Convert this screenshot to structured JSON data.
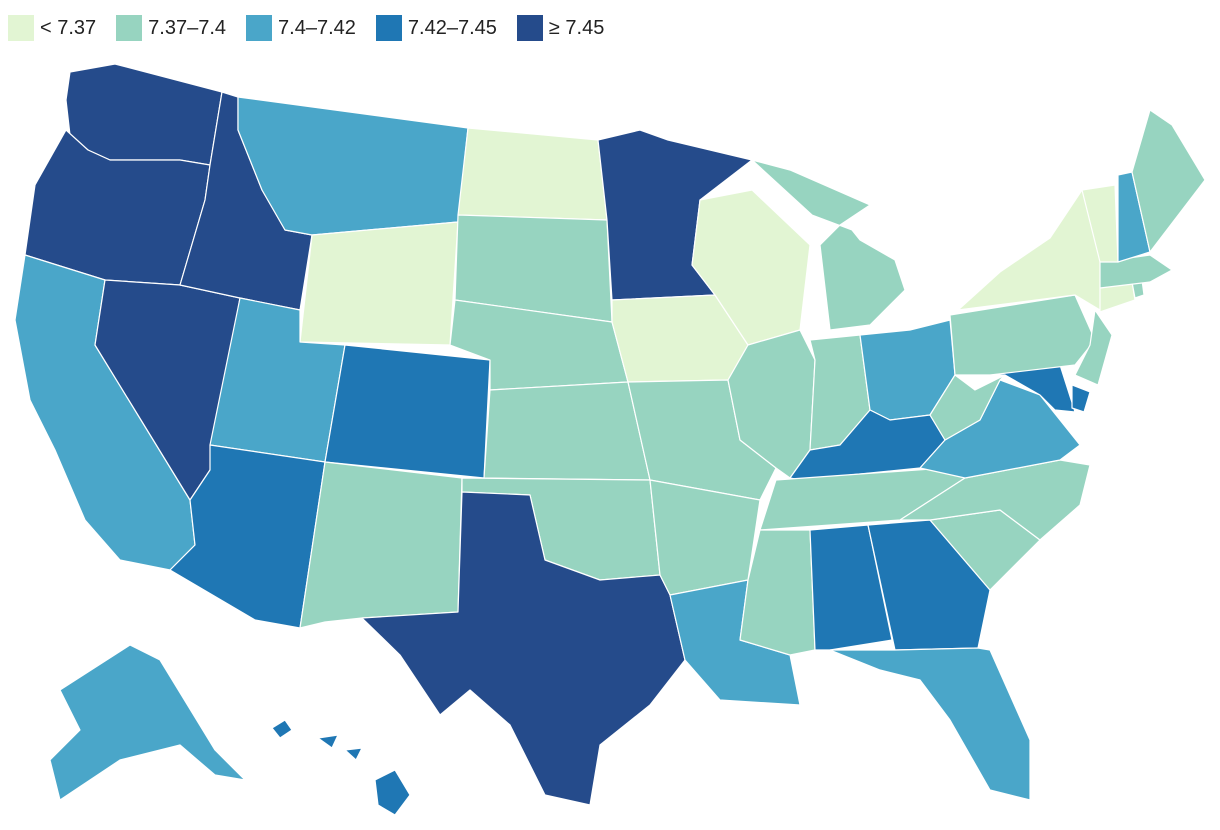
{
  "legend": [
    {
      "label": "< 7.37",
      "color": "#e2f5d3"
    },
    {
      "label": "7.37–7.4",
      "color": "#97d4c0"
    },
    {
      "label": "7.4–7.42",
      "color": "#4aa6c9"
    },
    {
      "label": "7.42–7.45",
      "color": "#1f77b4"
    },
    {
      "label": "≥ 7.45",
      "color": "#254b8b"
    }
  ],
  "states": {
    "WA": 4,
    "OR": 4,
    "CA": 2,
    "NV": 4,
    "ID": 4,
    "MT": 2,
    "WY": 0,
    "UT": 2,
    "AZ": 3,
    "CO": 3,
    "NM": 1,
    "ND": 0,
    "SD": 1,
    "NE": 1,
    "KS": 1,
    "OK": 1,
    "TX": 4,
    "MN": 4,
    "IA": 0,
    "MO": 1,
    "AR": 1,
    "LA": 2,
    "WI": 0,
    "IL": 1,
    "MI": 1,
    "IN": 1,
    "OH": 2,
    "KY": 3,
    "TN": 1,
    "MS": 1,
    "AL": 3,
    "GA": 3,
    "FL": 2,
    "SC": 1,
    "NC": 1,
    "VA": 2,
    "WV": 1,
    "MD": 3,
    "DE": 3,
    "PA": 1,
    "NJ": 1,
    "NY": 0,
    "CT": 0,
    "RI": 1,
    "MA": 1,
    "VT": 0,
    "NH": 2,
    "ME": 1,
    "AK": 2,
    "HI": 3
  }
}
